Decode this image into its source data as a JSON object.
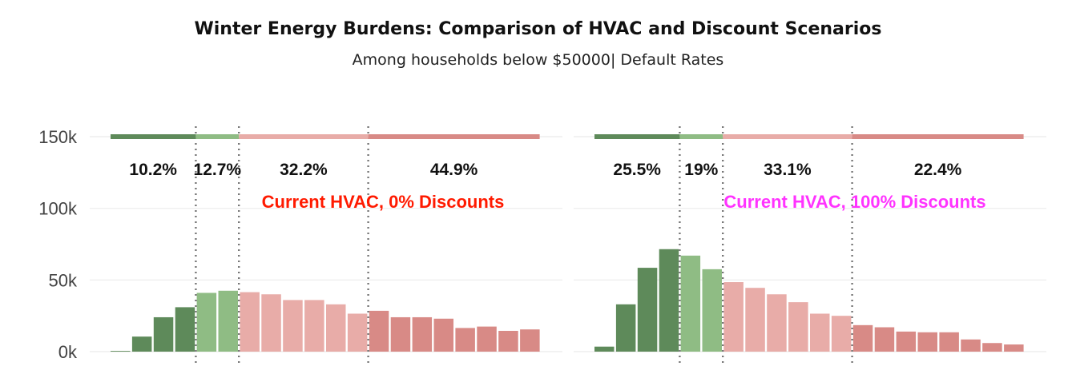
{
  "title": "Winter Energy Burdens: Comparison of HVAC and Discount Scenarios",
  "subtitle": "Among households below $50000| Default Rates",
  "colors": {
    "dark_green": "#5e8a5a",
    "light_green": "#8fbc84",
    "light_red": "#e8aca8",
    "dark_red": "#d88a86"
  },
  "chart_data": [
    {
      "type": "bar",
      "title": "Current HVAC, 0% Discounts",
      "title_color": "#ff1a00",
      "ylim": [
        0,
        150000
      ],
      "y_ticks": [
        {
          "value": 0,
          "label": "0k"
        },
        {
          "value": 50000,
          "label": "50k"
        },
        {
          "value": 100000,
          "label": "100k"
        },
        {
          "value": 150000,
          "label": "150k"
        }
      ],
      "bins": [
        {
          "value": 500,
          "group": 0
        },
        {
          "value": 10500,
          "group": 0
        },
        {
          "value": 24000,
          "group": 0
        },
        {
          "value": 31000,
          "group": 0
        },
        {
          "value": 41000,
          "group": 1
        },
        {
          "value": 42500,
          "group": 1
        },
        {
          "value": 41500,
          "group": 2
        },
        {
          "value": 40000,
          "group": 2
        },
        {
          "value": 36000,
          "group": 2
        },
        {
          "value": 36000,
          "group": 2
        },
        {
          "value": 33000,
          "group": 2
        },
        {
          "value": 26500,
          "group": 2
        },
        {
          "value": 28500,
          "group": 3
        },
        {
          "value": 24000,
          "group": 3
        },
        {
          "value": 24000,
          "group": 3
        },
        {
          "value": 23000,
          "group": 3
        },
        {
          "value": 16500,
          "group": 3
        },
        {
          "value": 17500,
          "group": 3
        },
        {
          "value": 14500,
          "group": 3
        },
        {
          "value": 15500,
          "group": 3
        }
      ],
      "segments": [
        {
          "label": "10.2%",
          "color": "#5e8a5a"
        },
        {
          "label": "12.7%",
          "color": "#8fbc84"
        },
        {
          "label": "32.2%",
          "color": "#e8aca8"
        },
        {
          "label": "44.9%",
          "color": "#d88a86"
        }
      ]
    },
    {
      "type": "bar",
      "title": "Current HVAC, 100% Discounts",
      "title_color": "#ff33ff",
      "ylim": [
        0,
        150000
      ],
      "bins": [
        {
          "value": 3500,
          "group": 0
        },
        {
          "value": 33000,
          "group": 0
        },
        {
          "value": 58500,
          "group": 0
        },
        {
          "value": 71500,
          "group": 0
        },
        {
          "value": 67000,
          "group": 1
        },
        {
          "value": 57500,
          "group": 1
        },
        {
          "value": 48500,
          "group": 2
        },
        {
          "value": 44500,
          "group": 2
        },
        {
          "value": 40000,
          "group": 2
        },
        {
          "value": 34500,
          "group": 2
        },
        {
          "value": 26500,
          "group": 2
        },
        {
          "value": 25000,
          "group": 2
        },
        {
          "value": 18500,
          "group": 3
        },
        {
          "value": 17000,
          "group": 3
        },
        {
          "value": 14000,
          "group": 3
        },
        {
          "value": 13500,
          "group": 3
        },
        {
          "value": 13500,
          "group": 3
        },
        {
          "value": 8500,
          "group": 3
        },
        {
          "value": 6000,
          "group": 3
        },
        {
          "value": 5000,
          "group": 3
        }
      ],
      "segments": [
        {
          "label": "25.5%",
          "color": "#5e8a5a"
        },
        {
          "label": "19%",
          "color": "#8fbc84"
        },
        {
          "label": "33.1%",
          "color": "#e8aca8"
        },
        {
          "label": "22.4%",
          "color": "#d88a86"
        }
      ]
    }
  ]
}
